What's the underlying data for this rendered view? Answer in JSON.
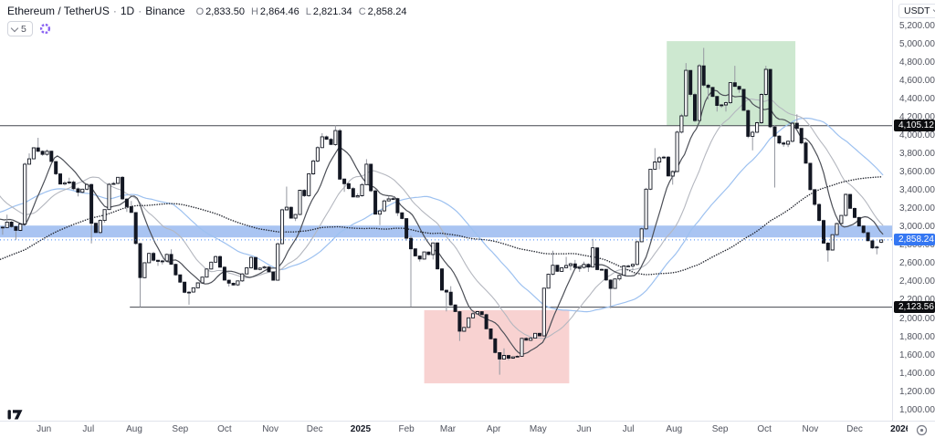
{
  "header": {
    "symbol": "Ethereum / TetherUS",
    "separator": "·",
    "interval": "1D",
    "exchange": "Binance",
    "ohlc": [
      {
        "label": "O",
        "value": "2,833.50"
      },
      {
        "label": "H",
        "value": "2,864.46"
      },
      {
        "label": "L",
        "value": "2,821.34"
      },
      {
        "label": "C",
        "value": "2,858.24"
      }
    ],
    "objects_count": "5"
  },
  "price_axis": {
    "currency": "USDT",
    "ticks": [
      {
        "label": "5,200.00",
        "price": 5200
      },
      {
        "label": "5,000.00",
        "price": 5000
      },
      {
        "label": "4,800.00",
        "price": 4800
      },
      {
        "label": "4,600.00",
        "price": 4600
      },
      {
        "label": "4,400.00",
        "price": 4400
      },
      {
        "label": "4,200.00",
        "price": 4200
      },
      {
        "label": "4,000.00",
        "price": 4000
      },
      {
        "label": "3,800.00",
        "price": 3800
      },
      {
        "label": "3,600.00",
        "price": 3600
      },
      {
        "label": "3,400.00",
        "price": 3400
      },
      {
        "label": "3,200.00",
        "price": 3200
      },
      {
        "label": "3,000.00",
        "price": 3000
      },
      {
        "label": "2,800.00",
        "price": 2800
      },
      {
        "label": "2,600.00",
        "price": 2600
      },
      {
        "label": "2,400.00",
        "price": 2400
      },
      {
        "label": "2,200.00",
        "price": 2200
      },
      {
        "label": "2,000.00",
        "price": 2000
      },
      {
        "label": "1,800.00",
        "price": 1800
      },
      {
        "label": "1,600.00",
        "price": 1600
      },
      {
        "label": "1,400.00",
        "price": 1400
      },
      {
        "label": "1,200.00",
        "price": 1200
      },
      {
        "label": "1,000.00",
        "price": 1000
      }
    ],
    "badges": [
      {
        "text": "4,105.12",
        "price": 4105.12,
        "type": "black"
      },
      {
        "text": "2,858.24",
        "price": 2858.24,
        "type": "blue"
      },
      {
        "text": "2,123.56",
        "price": 2123.56,
        "type": "black"
      }
    ]
  },
  "time_axis": {
    "ticks": [
      {
        "label": "Jun",
        "day": 31
      },
      {
        "label": "Jul",
        "day": 61
      },
      {
        "label": "Aug",
        "day": 92
      },
      {
        "label": "Sep",
        "day": 123
      },
      {
        "label": "Oct",
        "day": 153
      },
      {
        "label": "Nov",
        "day": 184
      },
      {
        "label": "Dec",
        "day": 214
      },
      {
        "label": "2025",
        "day": 245,
        "bold": true
      },
      {
        "label": "Feb",
        "day": 276
      },
      {
        "label": "Mar",
        "day": 304
      },
      {
        "label": "Apr",
        "day": 335
      },
      {
        "label": "May",
        "day": 365
      },
      {
        "label": "Jun",
        "day": 396
      },
      {
        "label": "Jul",
        "day": 426
      },
      {
        "label": "Aug",
        "day": 457
      },
      {
        "label": "Sep",
        "day": 488
      },
      {
        "label": "Oct",
        "day": 518
      },
      {
        "label": "Nov",
        "day": 549
      },
      {
        "label": "Dec",
        "day": 579
      },
      {
        "label": "2026",
        "day": 610,
        "bold": true
      }
    ]
  },
  "chart_data": {
    "type": "candlestick",
    "title": "Ethereum / TetherUS",
    "interval": "1D",
    "exchange": "Binance",
    "last_candle": {
      "open": 2833.5,
      "high": 2864.46,
      "low": 2821.34,
      "close": 2858.24
    },
    "last_price": 2858.24,
    "y_axis": {
      "min": 1000,
      "max": 5200,
      "step": 200,
      "grid": false
    },
    "visible_range": {
      "from": "May 2024",
      "to": "Dec 2025"
    },
    "seed": 11,
    "candle_days": 3,
    "anchors_pre": [
      [
        -210,
        1650
      ],
      [
        -180,
        1800
      ],
      [
        -150,
        2200
      ],
      [
        -120,
        2300
      ],
      [
        -105,
        2550
      ],
      [
        -90,
        2280
      ],
      [
        -75,
        2950
      ],
      [
        -60,
        3400
      ],
      [
        -48,
        3950
      ],
      [
        -40,
        3520
      ],
      [
        -33,
        3500
      ],
      [
        -27,
        3650
      ],
      [
        -22,
        3060
      ],
      [
        -14,
        3020
      ],
      [
        -8,
        3140
      ],
      [
        -3,
        3200
      ]
    ],
    "anchors": [
      [
        0,
        3010
      ],
      [
        3,
        2920
      ],
      [
        6,
        3100
      ],
      [
        9,
        3010
      ],
      [
        12,
        2930
      ],
      [
        15,
        3030
      ],
      [
        18,
        3080
      ],
      [
        19,
        3660
      ],
      [
        21,
        3790
      ],
      [
        23,
        3730
      ],
      [
        26,
        3900
      ],
      [
        28,
        3830
      ],
      [
        31,
        3800
      ],
      [
        35,
        3830
      ],
      [
        38,
        3670
      ],
      [
        43,
        3480
      ],
      [
        47,
        3510
      ],
      [
        50,
        3520
      ],
      [
        54,
        3350
      ],
      [
        57,
        3390
      ],
      [
        61,
        3440
      ],
      [
        64,
        3060
      ],
      [
        67,
        2930
      ],
      [
        69,
        3020
      ],
      [
        72,
        3110
      ],
      [
        76,
        3450
      ],
      [
        82,
        3530
      ],
      [
        84,
        3470
      ],
      [
        86,
        3180
      ],
      [
        90,
        3270
      ],
      [
        93,
        2990
      ],
      [
        95,
        2690
      ],
      [
        96,
        2420
      ],
      [
        98,
        2460
      ],
      [
        100,
        2600
      ],
      [
        104,
        2720
      ],
      [
        107,
        2590
      ],
      [
        112,
        2630
      ],
      [
        116,
        2740
      ],
      [
        119,
        2530
      ],
      [
        123,
        2430
      ],
      [
        128,
        2270
      ],
      [
        131,
        2300
      ],
      [
        134,
        2360
      ],
      [
        140,
        2460
      ],
      [
        144,
        2610
      ],
      [
        148,
        2690
      ],
      [
        153,
        2450
      ],
      [
        156,
        2370
      ],
      [
        162,
        2390
      ],
      [
        166,
        2470
      ],
      [
        172,
        2670
      ],
      [
        175,
        2540
      ],
      [
        180,
        2570
      ],
      [
        184,
        2510
      ],
      [
        187,
        2400
      ],
      [
        189,
        2720
      ],
      [
        193,
        3180
      ],
      [
        194,
        3370
      ],
      [
        197,
        3120
      ],
      [
        201,
        3080
      ],
      [
        205,
        3400
      ],
      [
        208,
        3360
      ],
      [
        212,
        3650
      ],
      [
        216,
        3840
      ],
      [
        219,
        4000
      ],
      [
        222,
        3960
      ],
      [
        226,
        3920
      ],
      [
        229,
        4040
      ],
      [
        231,
        3620
      ],
      [
        233,
        3410
      ],
      [
        236,
        3490
      ],
      [
        241,
        3350
      ],
      [
        245,
        3350
      ],
      [
        247,
        3450
      ],
      [
        250,
        3690
      ],
      [
        253,
        3380
      ],
      [
        257,
        3030
      ],
      [
        260,
        3220
      ],
      [
        262,
        3310
      ],
      [
        265,
        3330
      ],
      [
        268,
        3300
      ],
      [
        270,
        3140
      ],
      [
        274,
        3110
      ],
      [
        276,
        2870
      ],
      [
        278,
        2880
      ],
      [
        281,
        2730
      ],
      [
        284,
        2630
      ],
      [
        287,
        2680
      ],
      [
        289,
        2730
      ],
      [
        293,
        2660
      ],
      [
        295,
        2820
      ],
      [
        297,
        2660
      ],
      [
        300,
        2330
      ],
      [
        303,
        2230
      ],
      [
        305,
        2350
      ],
      [
        307,
        2150
      ],
      [
        309,
        2140
      ],
      [
        311,
        2020
      ],
      [
        313,
        1870
      ],
      [
        316,
        1910
      ],
      [
        321,
        2060
      ],
      [
        325,
        2090
      ],
      [
        329,
        2010
      ],
      [
        332,
        1820
      ],
      [
        334,
        1790
      ],
      [
        338,
        1580
      ],
      [
        339,
        1470
      ],
      [
        341,
        1660
      ],
      [
        344,
        1550
      ],
      [
        348,
        1580
      ],
      [
        352,
        1590
      ],
      [
        355,
        1790
      ],
      [
        358,
        1770
      ],
      [
        362,
        1790
      ],
      [
        365,
        1840
      ],
      [
        368,
        1810
      ],
      [
        369,
        2010
      ],
      [
        370,
        2340
      ],
      [
        373,
        2480
      ],
      [
        374,
        2680
      ],
      [
        377,
        2540
      ],
      [
        381,
        2520
      ],
      [
        384,
        2650
      ],
      [
        386,
        2530
      ],
      [
        389,
        2630
      ],
      [
        392,
        2520
      ],
      [
        396,
        2620
      ],
      [
        399,
        2500
      ],
      [
        402,
        2680
      ],
      [
        403,
        2780
      ],
      [
        405,
        2540
      ],
      [
        409,
        2530
      ],
      [
        412,
        2410
      ],
      [
        414,
        2230
      ],
      [
        416,
        2420
      ],
      [
        420,
        2440
      ],
      [
        424,
        2580
      ],
      [
        428,
        2550
      ],
      [
        430,
        2610
      ],
      [
        432,
        2770
      ],
      [
        435,
        2950
      ],
      [
        437,
        3010
      ],
      [
        439,
        3390
      ],
      [
        441,
        3550
      ],
      [
        443,
        3760
      ],
      [
        446,
        3640
      ],
      [
        448,
        3730
      ],
      [
        451,
        3780
      ],
      [
        453,
        3640
      ],
      [
        455,
        3440
      ],
      [
        458,
        3680
      ],
      [
        461,
        4170
      ],
      [
        464,
        4250
      ],
      [
        466,
        4700
      ],
      [
        468,
        4580
      ],
      [
        472,
        4150
      ],
      [
        475,
        4750
      ],
      [
        477,
        4780
      ],
      [
        479,
        4380
      ],
      [
        481,
        4520
      ],
      [
        484,
        4390
      ],
      [
        486,
        4290
      ],
      [
        489,
        4310
      ],
      [
        492,
        4300
      ],
      [
        494,
        4390
      ],
      [
        497,
        4650
      ],
      [
        500,
        4510
      ],
      [
        503,
        4480
      ],
      [
        506,
        4200
      ],
      [
        509,
        3870
      ],
      [
        511,
        4020
      ],
      [
        514,
        4150
      ],
      [
        517,
        4480
      ],
      [
        520,
        4700
      ],
      [
        522,
        4450
      ],
      [
        524,
        3750
      ],
      [
        526,
        3960
      ],
      [
        529,
        3930
      ],
      [
        532,
        3890
      ],
      [
        535,
        3960
      ],
      [
        539,
        4150
      ],
      [
        543,
        3960
      ],
      [
        546,
        3760
      ],
      [
        549,
        3550
      ],
      [
        551,
        3300
      ],
      [
        553,
        3240
      ],
      [
        555,
        3140
      ],
      [
        557,
        3040
      ],
      [
        559,
        2820
      ],
      [
        561,
        2700
      ],
      [
        563,
        2790
      ],
      [
        565,
        2930
      ],
      [
        567,
        3010
      ],
      [
        570,
        3070
      ],
      [
        572,
        3230
      ],
      [
        574,
        3350
      ],
      [
        576,
        3260
      ],
      [
        579,
        3150
      ],
      [
        582,
        3050
      ],
      [
        585,
        2980
      ],
      [
        588,
        2900
      ],
      [
        590,
        2830
      ],
      [
        593,
        2760
      ],
      [
        596,
        2790
      ],
      [
        598,
        2858.24
      ]
    ],
    "spikes_low": [
      [
        12,
        2860
      ],
      [
        64,
        2820
      ],
      [
        96,
        2123.56
      ],
      [
        128,
        2150
      ],
      [
        278,
        2125
      ],
      [
        303,
        2076
      ],
      [
        313,
        1754
      ],
      [
        339,
        1385
      ],
      [
        414,
        2111
      ],
      [
        524,
        3430
      ],
      [
        561,
        2620
      ],
      [
        593,
        2700
      ]
    ],
    "spikes_high": [
      [
        26,
        3974
      ],
      [
        194,
        3440
      ],
      [
        229,
        4107
      ],
      [
        250,
        3740
      ],
      [
        374,
        2740
      ],
      [
        403,
        2870
      ],
      [
        443,
        3860
      ],
      [
        466,
        4790
      ],
      [
        477,
        4956
      ],
      [
        498,
        4760
      ],
      [
        520,
        4760
      ],
      [
        539,
        4230
      ],
      [
        574,
        3360
      ]
    ],
    "moving_averages": [
      {
        "name": "MA 100",
        "window": 100,
        "color": "#9dc1f0",
        "style": "solid",
        "width": 1.2
      },
      {
        "name": "MA 50",
        "window": 50,
        "color": "#b4b7bf",
        "style": "solid",
        "width": 1.1
      },
      {
        "name": "MA 21",
        "window": 21,
        "color": "#4c4f57",
        "style": "solid",
        "width": 1.2
      },
      {
        "name": "MA 200",
        "window": 200,
        "color": "#23262f",
        "style": "dotted",
        "width": 1.5
      }
    ],
    "drawings": {
      "horizontal_lines": [
        {
          "price": 4105.12,
          "from_day": null,
          "color": "#44474f"
        },
        {
          "price": 2123.56,
          "from_day": 89,
          "color": "#44474f"
        }
      ],
      "band": {
        "price_top": 3015,
        "price_bottom": 2885,
        "color": "rgba(41,108,223,0.40)"
      },
      "boxes": [
        {
          "name": "green-zone-box",
          "day_from": 452,
          "day_to": 539,
          "price_top": 5030,
          "price_bottom": 4105.12,
          "color": "rgba(56,164,68,0.25)"
        },
        {
          "name": "red-zone-box",
          "day_from": 288,
          "day_to": 386,
          "price_top": 2090,
          "price_bottom": 1290,
          "color": "rgba(226,66,62,0.24)"
        }
      ],
      "last_price_line": {
        "price": 2858.24,
        "color": "#3b82f6",
        "style": "dotted"
      }
    },
    "colors": {
      "up_body": "#ffffff",
      "down_body": "#131722",
      "candle_border": "#131722",
      "wick": "#9598a1",
      "background": "#ffffff",
      "axis_text": "#50535e",
      "separator": "#e0e3eb"
    }
  }
}
